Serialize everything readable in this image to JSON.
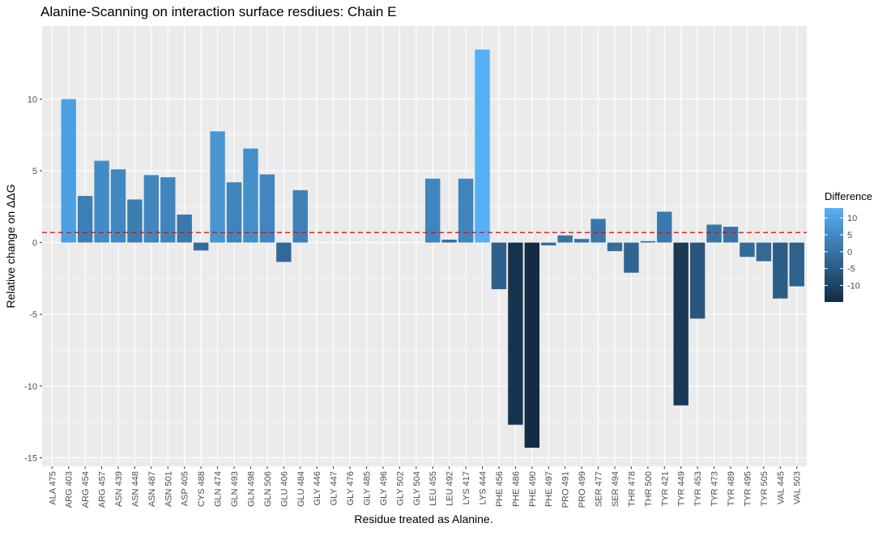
{
  "chart_data": {
    "type": "bar",
    "title": "Alanine-Scanning on interaction surface resdiues: Chain E",
    "xlabel": "Residue treated as Alanine.",
    "ylabel": "Relative change on ΔΔG",
    "ylim": [
      -15.6,
      15.1
    ],
    "yticks": [
      -15,
      -10,
      -5,
      0,
      5,
      10
    ],
    "ytick_labels": [
      "-15",
      "-10",
      "-5",
      "0",
      "5",
      "10"
    ],
    "reference_line": {
      "y": 0.7,
      "style": "dashed",
      "color": "#ff0000"
    },
    "grid": true,
    "legend": {
      "title": "Difference",
      "position": "right",
      "labels": [
        "10",
        "5",
        "0",
        "-5",
        "-10"
      ],
      "ticks": [
        10,
        5,
        0,
        -5,
        -10
      ],
      "range": [
        -14.9,
        12.9
      ],
      "colors": {
        "low": "#132b43",
        "high": "#56b1f7"
      }
    },
    "categories": [
      "ALA 475",
      "ARG 403",
      "ARG 454",
      "ARG 457",
      "ASN 439",
      "ASN 448",
      "ASN 487",
      "ASN 501",
      "ASP 405",
      "CYS 488",
      "GLN 474",
      "GLN 493",
      "GLN 498",
      "GLN 506",
      "GLU 406",
      "GLU 484",
      "GLY 446",
      "GLY 447",
      "GLY 476",
      "GLY 485",
      "GLY 496",
      "GLY 502",
      "GLY 504",
      "LEU 455",
      "LEU 492",
      "LYS 417",
      "LYS 444",
      "PHE 456",
      "PHE 486",
      "PHE 490",
      "PHE 497",
      "PRO 491",
      "PRO 499",
      "SER 477",
      "SER 494",
      "THR 478",
      "THR 500",
      "TYR 421",
      "TYR 449",
      "TYR 453",
      "TYR 473",
      "TYR 489",
      "TYR 495",
      "TYR 505",
      "VAL 445",
      "VAL 503"
    ],
    "values": [
      0,
      10.0,
      3.25,
      5.7,
      5.1,
      3.0,
      4.7,
      4.55,
      1.95,
      -0.55,
      7.75,
      4.2,
      6.55,
      4.75,
      -1.35,
      3.65,
      0,
      0,
      0,
      0,
      0,
      0,
      0,
      4.45,
      0.2,
      4.45,
      13.45,
      -3.25,
      -12.7,
      -14.3,
      -0.2,
      0.5,
      0.25,
      1.65,
      -0.6,
      -2.1,
      0.1,
      2.15,
      -11.35,
      -5.3,
      1.25,
      1.1,
      -1.0,
      -1.3,
      -3.9,
      -3.05
    ],
    "fill_values": [
      0,
      9.3,
      2.55,
      5.0,
      4.4,
      2.3,
      4.0,
      3.85,
      1.25,
      -1.25,
      7.05,
      3.5,
      5.85,
      4.05,
      -2.05,
      2.95,
      0,
      0,
      0,
      0,
      0,
      0,
      0,
      3.75,
      -0.5,
      3.75,
      12.75,
      -3.95,
      -13.4,
      -15.0,
      -0.9,
      -0.2,
      -0.45,
      0.95,
      -1.3,
      -2.8,
      -0.6,
      1.45,
      -12.05,
      -6.0,
      0.55,
      0.4,
      -1.7,
      -2.0,
      -4.6,
      -3.75
    ]
  }
}
